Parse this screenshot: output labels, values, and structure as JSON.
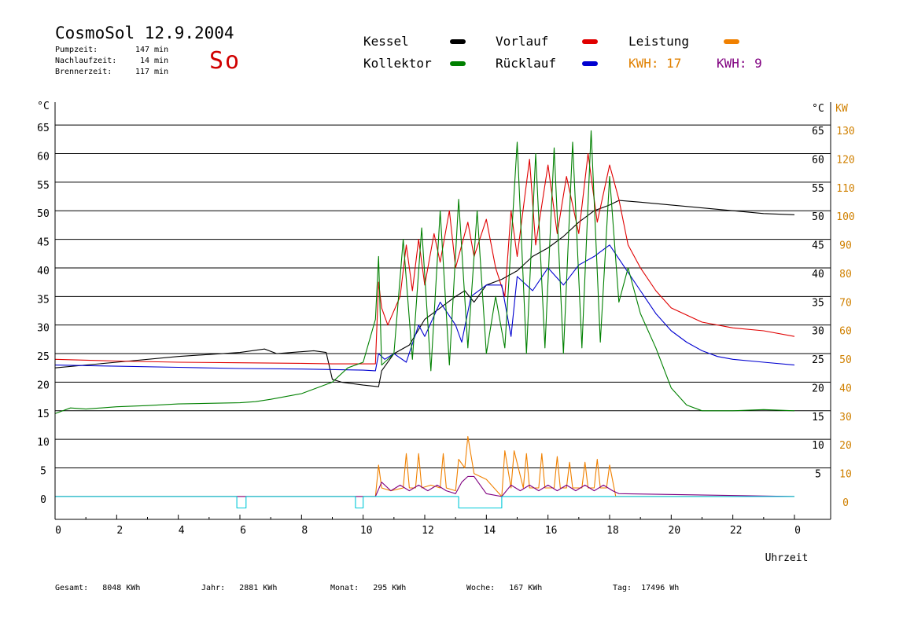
{
  "header": {
    "title": "CosmoSol 12.9.2004",
    "day": "So",
    "info": [
      {
        "label": "Pumpzeit:",
        "value": "147",
        "unit": "min"
      },
      {
        "label": "Nachlaufzeit:",
        "value": "14",
        "unit": "min"
      },
      {
        "label": "Brennerzeit:",
        "value": "117",
        "unit": "min"
      }
    ]
  },
  "legend": {
    "kessel": {
      "label": "Kessel",
      "color": "#000000"
    },
    "vorlauf": {
      "label": "Vorlauf",
      "color": "#e00000"
    },
    "leistung": {
      "label": "Leistung",
      "color": "#f08000"
    },
    "kollektor": {
      "label": "Kollektor",
      "color": "#008000"
    },
    "ruecklauf": {
      "label": "Rücklauf",
      "color": "#0000d0"
    },
    "kwh_orange": {
      "label": "KWH:",
      "value": "17",
      "color": "#e08000"
    },
    "kwh_purple": {
      "label": "KWH:",
      "value": "9",
      "color": "#800080"
    }
  },
  "footer": {
    "gesamt": {
      "label": "Gesamt:",
      "value": "8048 KWh"
    },
    "jahr": {
      "label": "Jahr:",
      "value": "2881 KWh"
    },
    "monat": {
      "label": "Monat:",
      "value": "295 KWh"
    },
    "woche": {
      "label": "Woche:",
      "value": "167 KWh"
    },
    "tag": {
      "label": "Tag:",
      "value": "17496 Wh"
    }
  },
  "chart_data": {
    "type": "line",
    "xlabel": "Uhrzeit",
    "ylabel_left": "°C",
    "ylabel_right": "°C",
    "ylabel_right2": "KW",
    "xlim": [
      0,
      24
    ],
    "ylim": [
      -4,
      69
    ],
    "x_ticks": [
      "0",
      "2",
      "4",
      "6",
      "8",
      "10",
      "12",
      "14",
      "16",
      "18",
      "20",
      "22",
      "0"
    ],
    "y_ticks_left": [
      "0",
      "5",
      "10",
      "15",
      "20",
      "25",
      "30",
      "35",
      "40",
      "45",
      "50",
      "55",
      "60",
      "65"
    ],
    "y_ticks_right": [
      "5",
      "10",
      "15",
      "20",
      "25",
      "30",
      "35",
      "40",
      "45",
      "50",
      "55",
      "60",
      "65"
    ],
    "y_ticks_kw": [
      "0",
      "10",
      "20",
      "30",
      "40",
      "50",
      "60",
      "70",
      "80",
      "90",
      "100",
      "110",
      "120",
      "130"
    ],
    "grid": true,
    "series": [
      {
        "name": "Kessel",
        "color": "#000000",
        "x": [
          0,
          2,
          4,
          6,
          6.8,
          7.2,
          8.4,
          8.8,
          9.0,
          9.3,
          10.0,
          10.5,
          10.6,
          11.0,
          11.5,
          12.0,
          12.5,
          13.0,
          13.3,
          13.6,
          14.0,
          14.5,
          15.0,
          15.5,
          16.0,
          16.5,
          17.0,
          17.5,
          18.0,
          18.3,
          19.0,
          20.0,
          21.0,
          22.0,
          23.0,
          24.0
        ],
        "y": [
          22.5,
          23.5,
          24.5,
          25.2,
          25.8,
          25.0,
          25.5,
          25.2,
          20.5,
          20.0,
          19.5,
          19.2,
          22.0,
          25.0,
          26.5,
          31.0,
          33.0,
          35.0,
          36.0,
          34.0,
          37.0,
          38.0,
          39.5,
          42.0,
          43.5,
          45.5,
          48.0,
          50.0,
          51.0,
          51.8,
          51.5,
          51.0,
          50.5,
          50.0,
          49.5,
          49.3
        ]
      },
      {
        "name": "Vorlauf",
        "color": "#e00000",
        "x": [
          0,
          2,
          4,
          6,
          8,
          9.0,
          10.0,
          10.4,
          10.5,
          10.6,
          10.8,
          11.2,
          11.4,
          11.6,
          11.8,
          12.0,
          12.3,
          12.5,
          12.8,
          13.0,
          13.4,
          13.6,
          14.0,
          14.3,
          14.6,
          14.8,
          15.0,
          15.4,
          15.6,
          16.0,
          16.3,
          16.6,
          17.0,
          17.3,
          17.6,
          18.0,
          18.3,
          18.6,
          19.0,
          19.5,
          20.0,
          21.0,
          22.0,
          23.0,
          24.0
        ],
        "y": [
          24.0,
          23.7,
          23.5,
          23.4,
          23.3,
          23.2,
          23.2,
          23.2,
          37.5,
          33.0,
          30.0,
          35.0,
          44.0,
          36.0,
          45.0,
          37.0,
          46.0,
          41.0,
          50.0,
          40.0,
          48.0,
          42.0,
          48.5,
          40.0,
          35.0,
          50.0,
          42.0,
          59.0,
          44.0,
          58.0,
          46.0,
          56.0,
          46.0,
          60.0,
          48.0,
          58.0,
          52.0,
          44.0,
          40.0,
          36.0,
          33.0,
          30.5,
          29.5,
          29.0,
          28.0
        ]
      },
      {
        "name": "Rücklauf",
        "color": "#0000d0",
        "x": [
          0,
          2,
          4,
          6,
          8,
          10.0,
          10.4,
          10.5,
          10.7,
          11.0,
          11.4,
          11.8,
          12.0,
          12.5,
          13.0,
          13.2,
          13.5,
          14.0,
          14.5,
          14.8,
          15.0,
          15.5,
          16.0,
          16.5,
          17.0,
          17.5,
          18.0,
          18.5,
          19.0,
          19.5,
          20.0,
          20.5,
          21.0,
          21.5,
          22.0,
          23.0,
          24.0
        ],
        "y": [
          23.0,
          22.8,
          22.6,
          22.4,
          22.3,
          22.1,
          22.0,
          25.0,
          24.0,
          25.0,
          23.5,
          30.0,
          28.0,
          34.0,
          30.0,
          27.0,
          35.0,
          37.0,
          37.0,
          28.0,
          38.5,
          36.0,
          40.0,
          37.0,
          40.5,
          42.0,
          44.0,
          40.0,
          36.0,
          32.0,
          29.0,
          27.0,
          25.5,
          24.5,
          24.0,
          23.5,
          23.0
        ]
      },
      {
        "name": "Kollektor",
        "color": "#008000",
        "x": [
          0,
          0.5,
          1,
          2,
          3,
          4,
          5,
          6,
          6.5,
          7,
          8,
          9,
          9.5,
          10.0,
          10.4,
          10.5,
          10.6,
          11.0,
          11.3,
          11.6,
          11.9,
          12.2,
          12.5,
          12.8,
          13.1,
          13.4,
          13.7,
          14.0,
          14.3,
          14.6,
          15.0,
          15.3,
          15.6,
          15.9,
          16.2,
          16.5,
          16.8,
          17.1,
          17.4,
          17.7,
          18.0,
          18.3,
          18.6,
          19.0,
          19.5,
          20.0,
          20.5,
          21.0,
          22.0,
          23.0,
          24.0
        ],
        "y": [
          14.5,
          15.5,
          15.3,
          15.7,
          15.9,
          16.2,
          16.3,
          16.4,
          16.6,
          17.0,
          18.0,
          20.0,
          22.5,
          23.5,
          31.0,
          42.0,
          23.0,
          25.0,
          45.0,
          24.0,
          47.0,
          22.0,
          50.0,
          23.0,
          52.0,
          26.0,
          50.0,
          25.0,
          35.0,
          26.0,
          62.0,
          25.0,
          60.0,
          26.0,
          61.0,
          25.0,
          62.0,
          26.0,
          64.0,
          27.0,
          56.0,
          34.0,
          40.0,
          32.0,
          26.0,
          19.0,
          16.0,
          15.0,
          15.0,
          15.2,
          15.0
        ]
      },
      {
        "name": "Leistung",
        "color": "#f08000",
        "x": [
          0,
          10.4,
          10.5,
          10.6,
          10.9,
          11.3,
          11.4,
          11.5,
          11.7,
          11.8,
          11.9,
          12.2,
          12.5,
          12.6,
          12.7,
          13.0,
          13.1,
          13.3,
          13.4,
          13.6,
          14.0,
          14.5,
          14.6,
          14.8,
          14.9,
          15.2,
          15.3,
          15.4,
          15.7,
          15.8,
          15.9,
          16.2,
          16.3,
          16.4,
          16.6,
          16.7,
          16.8,
          17.1,
          17.2,
          17.3,
          17.5,
          17.6,
          17.7,
          17.9,
          18.0,
          18.2,
          24.0
        ],
        "y": [
          0,
          0,
          5.5,
          1.5,
          1.0,
          1.5,
          7.5,
          1.5,
          1.5,
          7.5,
          1.5,
          2.0,
          1.5,
          7.5,
          1.5,
          1.0,
          6.5,
          5.0,
          10.5,
          4.0,
          3.0,
          0,
          8.0,
          1.5,
          8.0,
          1.5,
          7.5,
          1.5,
          1.5,
          7.5,
          1.5,
          1.5,
          7.0,
          1.5,
          1.5,
          6.0,
          1.5,
          1.5,
          6.0,
          1.5,
          1.5,
          6.5,
          1.5,
          1.5,
          5.5,
          0,
          0
        ]
      },
      {
        "name": "",
        "color": "#800080",
        "x": [
          0,
          10.4,
          10.6,
          10.9,
          11.2,
          11.5,
          11.8,
          12.1,
          12.4,
          12.7,
          13.0,
          13.2,
          13.4,
          13.6,
          13.8,
          14.0,
          14.5,
          14.8,
          15.1,
          15.4,
          15.7,
          16.0,
          16.3,
          16.6,
          16.9,
          17.2,
          17.5,
          17.8,
          18.1,
          18.3,
          24.0
        ],
        "y": [
          0,
          0,
          2.5,
          1.0,
          2.0,
          1.0,
          2.0,
          1.0,
          2.0,
          1.0,
          0.5,
          2.5,
          3.5,
          3.5,
          2.0,
          0.5,
          0,
          2.0,
          1.0,
          2.0,
          1.0,
          2.0,
          1.0,
          2.0,
          1.0,
          2.0,
          1.0,
          2.0,
          1.0,
          0.5,
          0
        ]
      },
      {
        "name": "",
        "color": "#00c8d8",
        "step": true,
        "x": [
          0,
          5.9,
          5.9,
          6.2,
          6.2,
          9.75,
          9.75,
          10.0,
          10.0,
          13.1,
          13.1,
          14.5,
          14.5,
          24.0
        ],
        "y": [
          0,
          0,
          -2,
          -2,
          0,
          0,
          -2,
          -2,
          0,
          0,
          -2,
          -2,
          0,
          0
        ]
      }
    ]
  }
}
